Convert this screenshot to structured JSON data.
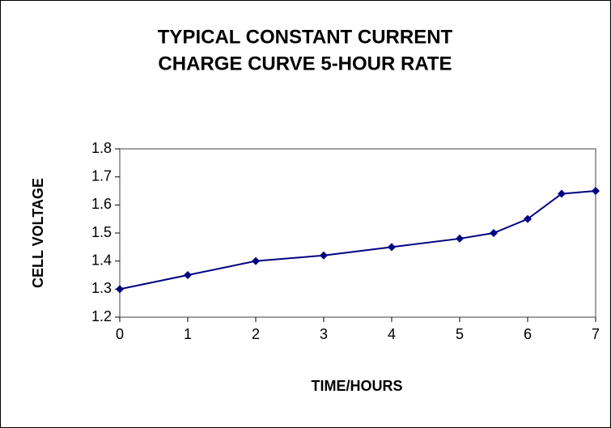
{
  "chart_data": {
    "type": "line",
    "title": [
      "TYPICAL CONSTANT CURRENT",
      "CHARGE CURVE 5-HOUR RATE"
    ],
    "x_label": "TIME/HOURS",
    "y_label": "CELL VOLTAGE",
    "series": [
      {
        "name": "Cell voltage",
        "color": "#000080",
        "x": [
          0,
          1,
          2,
          3,
          4,
          5,
          5.5,
          6,
          6.5,
          7
        ],
        "values": [
          1.3,
          1.35,
          1.4,
          1.42,
          1.45,
          1.48,
          1.5,
          1.55,
          1.64,
          1.65
        ]
      }
    ],
    "xlim": [
      0,
      7
    ],
    "xticks": [
      0,
      1,
      2,
      3,
      4,
      5,
      6,
      7
    ],
    "ylim": [
      1.2,
      1.8
    ],
    "yticks": [
      1.2,
      1.3,
      1.4,
      1.5,
      1.6,
      1.7,
      1.8
    ],
    "grid": false,
    "legend": false
  }
}
